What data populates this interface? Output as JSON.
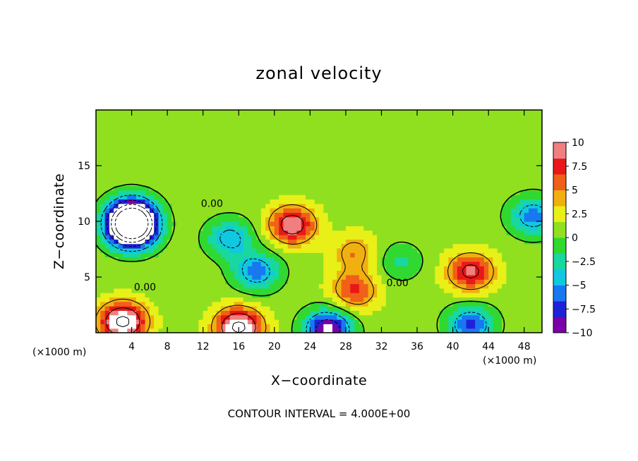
{
  "chart_data": {
    "type": "heatmap",
    "title": "zonal velocity",
    "xlabel": "X−coordinate",
    "ylabel": "Z−coordinate",
    "x_unit": "(×1000 m)",
    "z_unit": "(×1000 m)",
    "xlim": [
      0,
      50
    ],
    "ylim": [
      0,
      20
    ],
    "x_ticks": [
      4,
      8,
      12,
      16,
      20,
      24,
      28,
      32,
      36,
      40,
      44,
      48
    ],
    "x_tick_labels": [
      "4",
      "8",
      "12",
      "16",
      "20",
      "24",
      "28",
      "32",
      "36",
      "40",
      "44",
      "48"
    ],
    "y_ticks": [
      5,
      10,
      15
    ],
    "y_tick_labels": [
      "5",
      "10",
      "15"
    ],
    "colorbar": {
      "min": -10,
      "max": 10,
      "ticks": [
        10,
        7.5,
        5,
        2.5,
        0,
        -2.5,
        -5,
        -7.5,
        -10
      ],
      "tick_labels": [
        "10",
        "7.5",
        "5",
        "2.5",
        "0",
        "−2.5",
        "−5",
        "−7.5",
        "−10"
      ],
      "colors": [
        "#7a00a8",
        "#2020d8",
        "#1878f0",
        "#10c8e0",
        "#18d8a0",
        "#30d830",
        "#90e020",
        "#e8f018",
        "#f0b010",
        "#f06018",
        "#e81818",
        "#f08080"
      ]
    },
    "contour_interval_text": "CONTOUR INTERVAL = 4.000E+00",
    "contour_labels": [
      {
        "x": 13,
        "z": 11.6,
        "text": "0.00"
      },
      {
        "x": 5.5,
        "z": 4.1,
        "text": "0.00"
      },
      {
        "x": 33.8,
        "z": 4.5,
        "text": "0.00"
      }
    ],
    "features": [
      {
        "x": 4,
        "z": 10.5,
        "value": -14
      },
      {
        "x": 4,
        "z": 9.3,
        "value": -18
      },
      {
        "x": 3,
        "z": 1.0,
        "value": 12
      },
      {
        "x": 16,
        "z": 0.5,
        "value": 12
      },
      {
        "x": 22,
        "z": 9.7,
        "value": 9
      },
      {
        "x": 26,
        "z": 0.3,
        "value": -12
      },
      {
        "x": 15,
        "z": 8.5,
        "value": -6
      },
      {
        "x": 18,
        "z": 5.5,
        "value": -7
      },
      {
        "x": 29,
        "z": 3.8,
        "value": 6
      },
      {
        "x": 29,
        "z": 7.2,
        "value": 4
      },
      {
        "x": 42,
        "z": 5.5,
        "value": 8
      },
      {
        "x": 42,
        "z": 0.7,
        "value": -8
      },
      {
        "x": 49,
        "z": 10.5,
        "value": -7
      },
      {
        "x": 34,
        "z": 6.4,
        "value": -3
      }
    ]
  }
}
